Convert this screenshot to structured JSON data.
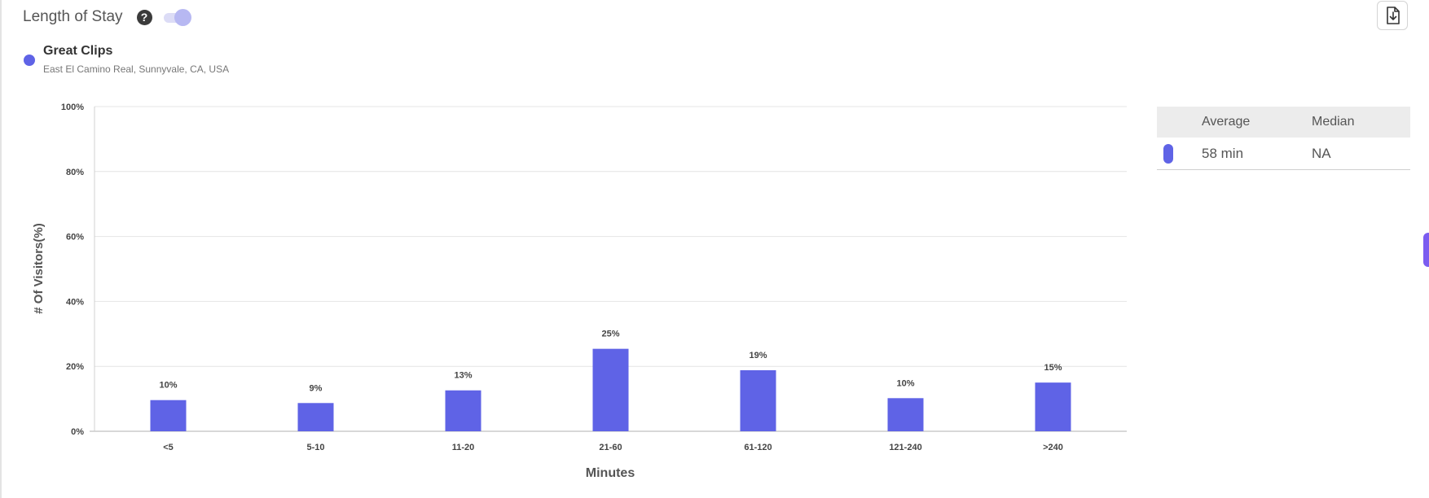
{
  "header": {
    "title": "Length of Stay",
    "help_glyph": "?",
    "help_icon": "question-circle-icon",
    "toggle_state": "on",
    "download_icon": "file-download-icon"
  },
  "legend": {
    "name": "Great Clips",
    "address": "East El Camino Real, Sunnyvale, CA, USA",
    "color": "#5f63e6"
  },
  "stats": {
    "headers": {
      "average": "Average",
      "median": "Median"
    },
    "rows": [
      {
        "average": "58 min",
        "median": "NA",
        "color": "#5f63e6"
      }
    ]
  },
  "chart_data": {
    "type": "bar",
    "title": "",
    "xlabel": "Minutes",
    "ylabel": "# Of Visitors(%)",
    "categories": [
      "<5",
      "5-10",
      "11-20",
      "21-60",
      "61-120",
      "121-240",
      ">240"
    ],
    "values": [
      9.6,
      8.7,
      12.6,
      25.4,
      18.8,
      10.2,
      15.0
    ],
    "data_labels": [
      "10%",
      "9%",
      "13%",
      "25%",
      "19%",
      "10%",
      "15%"
    ],
    "yticks": [
      "0%",
      "20%",
      "40%",
      "60%",
      "80%",
      "100%"
    ],
    "ylim": [
      0,
      100
    ],
    "grid": true,
    "bar_color": "#5f63e6"
  }
}
